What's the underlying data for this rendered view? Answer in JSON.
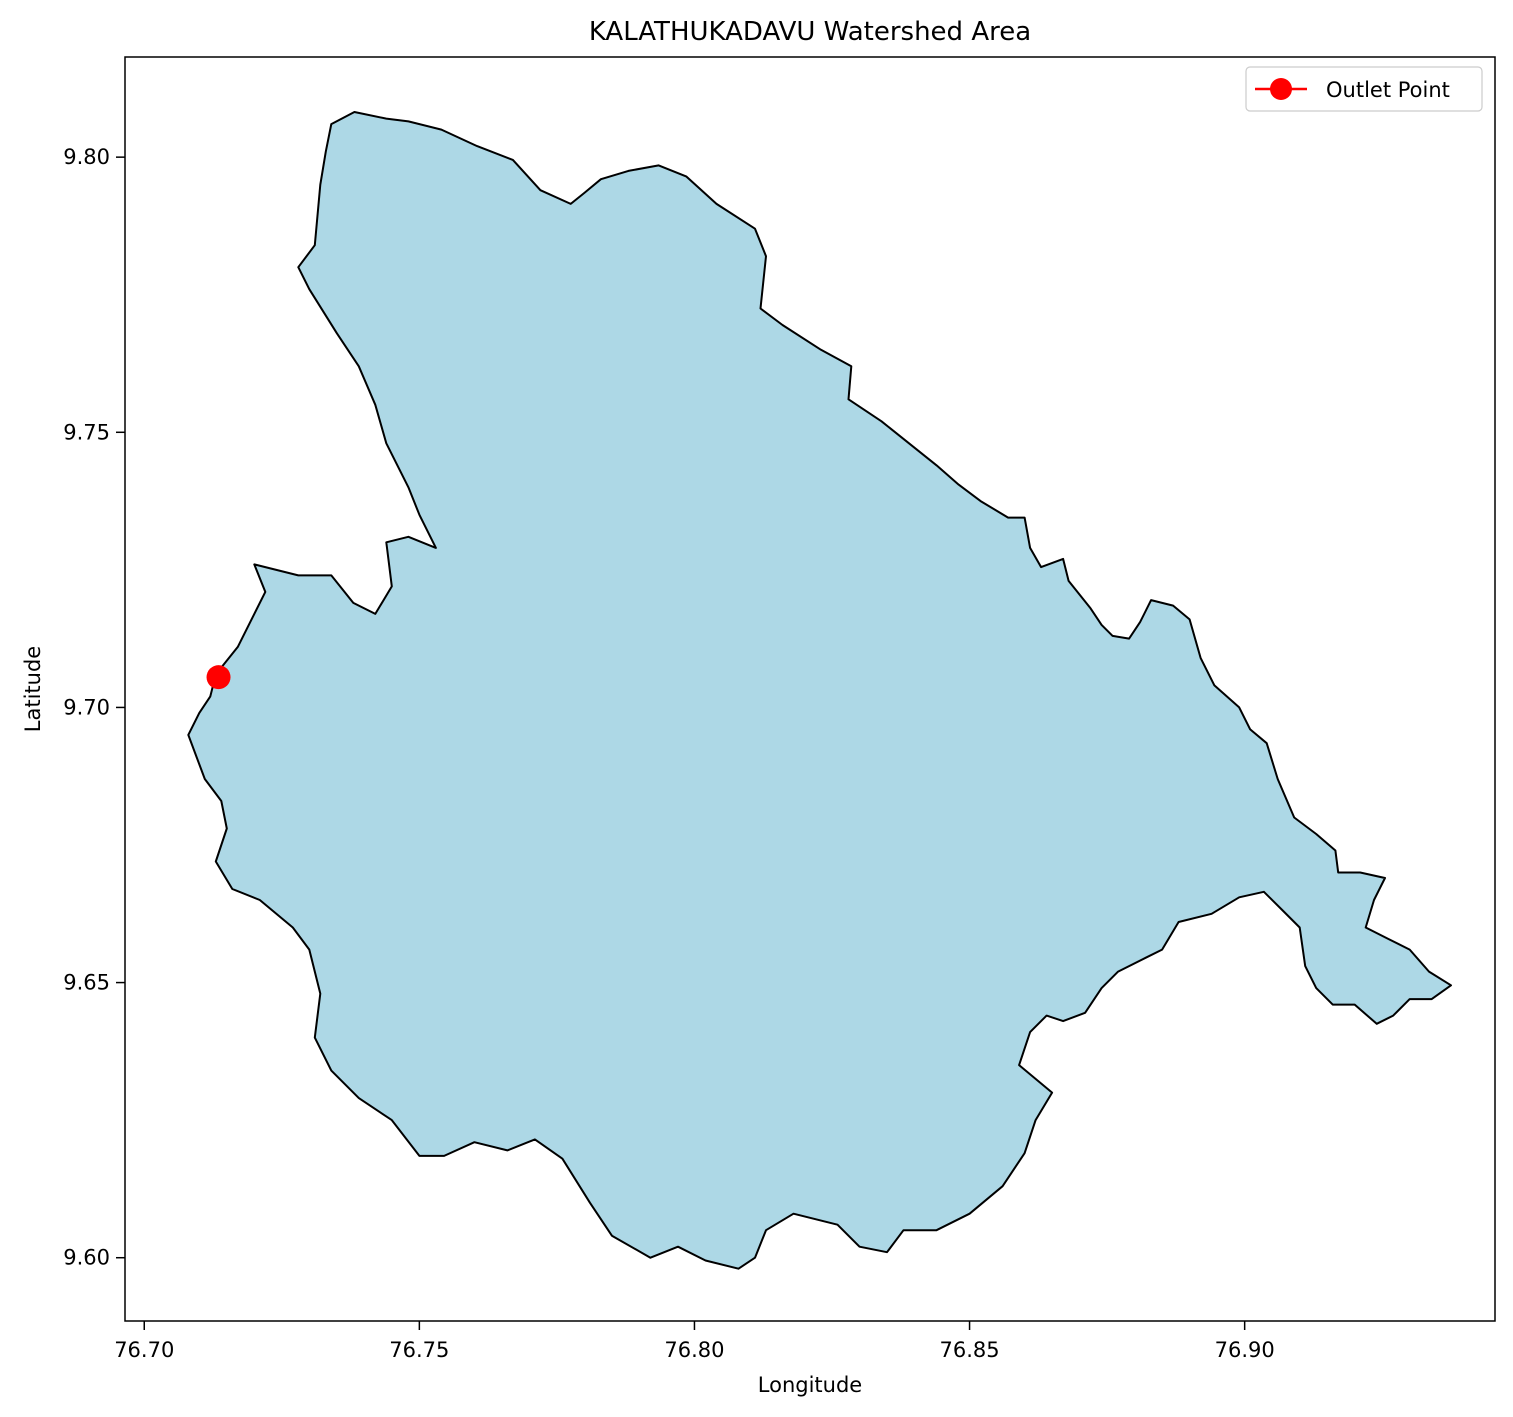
{
  "chart_data": {
    "type": "map",
    "title": "KALATHUKADAVU Watershed Area",
    "xlabel": "Longitude",
    "ylabel": "Latitude",
    "xlim": [
      76.6965,
      76.9455
    ],
    "ylim": [
      9.5885,
      9.8182
    ],
    "xticks": [
      {
        "value": 76.7,
        "label": "76.70"
      },
      {
        "value": 76.75,
        "label": "76.75"
      },
      {
        "value": 76.8,
        "label": "76.80"
      },
      {
        "value": 76.85,
        "label": "76.85"
      },
      {
        "value": 76.9,
        "label": "76.90"
      }
    ],
    "yticks": [
      {
        "value": 9.6,
        "label": "9.60"
      },
      {
        "value": 9.65,
        "label": "9.65"
      },
      {
        "value": 9.7,
        "label": "9.70"
      },
      {
        "value": 9.75,
        "label": "9.75"
      },
      {
        "value": 9.8,
        "label": "9.80"
      }
    ],
    "grid": false,
    "legend": {
      "placement": "upper-right",
      "entries": [
        {
          "label": "Outlet Point",
          "color": "#ff0000",
          "marker": "circle"
        }
      ]
    },
    "watershed": {
      "fill": "#add8e6",
      "edge": "#000000",
      "boundary": [
        [
          76.7382,
          9.8082
        ],
        [
          76.744,
          9.807
        ],
        [
          76.748,
          9.8065
        ],
        [
          76.754,
          9.805
        ],
        [
          76.7605,
          9.802
        ],
        [
          76.767,
          9.7995
        ],
        [
          76.772,
          9.794
        ],
        [
          76.7775,
          9.7915
        ],
        [
          76.78,
          9.7935
        ],
        [
          76.783,
          9.796
        ],
        [
          76.788,
          9.7975
        ],
        [
          76.7935,
          9.7985
        ],
        [
          76.7985,
          9.7965
        ],
        [
          76.804,
          9.7915
        ],
        [
          76.811,
          9.787
        ],
        [
          76.813,
          9.782
        ],
        [
          76.812,
          9.7725
        ],
        [
          76.816,
          9.7695
        ],
        [
          76.823,
          9.765
        ],
        [
          76.8285,
          9.762
        ],
        [
          76.828,
          9.756
        ],
        [
          76.834,
          9.752
        ],
        [
          76.839,
          9.748
        ],
        [
          76.844,
          9.744
        ],
        [
          76.848,
          9.7405
        ],
        [
          76.852,
          9.7375
        ],
        [
          76.857,
          9.7345
        ],
        [
          76.86,
          9.7345
        ],
        [
          76.861,
          9.729
        ],
        [
          76.863,
          9.7255
        ],
        [
          76.867,
          9.727
        ],
        [
          76.868,
          9.723
        ],
        [
          76.872,
          9.718
        ],
        [
          76.874,
          9.715
        ],
        [
          76.876,
          9.713
        ],
        [
          76.879,
          9.7125
        ],
        [
          76.881,
          9.7155
        ],
        [
          76.883,
          9.7195
        ],
        [
          76.887,
          9.7185
        ],
        [
          76.89,
          9.716
        ],
        [
          76.892,
          9.709
        ],
        [
          76.8945,
          9.704
        ],
        [
          76.899,
          9.7
        ],
        [
          76.901,
          9.696
        ],
        [
          76.904,
          9.6935
        ],
        [
          76.906,
          9.687
        ],
        [
          76.909,
          9.68
        ],
        [
          76.913,
          9.677
        ],
        [
          76.9165,
          9.674
        ],
        [
          76.917,
          9.67
        ],
        [
          76.921,
          9.67
        ],
        [
          76.9255,
          9.669
        ],
        [
          76.9235,
          9.665
        ],
        [
          76.922,
          9.66
        ],
        [
          76.926,
          9.658
        ],
        [
          76.93,
          9.656
        ],
        [
          76.9335,
          9.652
        ],
        [
          76.9375,
          9.6495
        ],
        [
          76.934,
          9.647
        ],
        [
          76.93,
          9.647
        ],
        [
          76.927,
          9.644
        ],
        [
          76.924,
          9.6425
        ],
        [
          76.92,
          9.646
        ],
        [
          76.916,
          9.646
        ],
        [
          76.913,
          9.649
        ],
        [
          76.911,
          9.653
        ],
        [
          76.91,
          9.66
        ],
        [
          76.907,
          9.663
        ],
        [
          76.9035,
          9.6665
        ],
        [
          76.899,
          9.6655
        ],
        [
          76.894,
          9.6625
        ],
        [
          76.888,
          9.661
        ],
        [
          76.885,
          9.656
        ],
        [
          76.882,
          9.6545
        ],
        [
          76.877,
          9.652
        ],
        [
          76.874,
          9.649
        ],
        [
          76.871,
          9.6445
        ],
        [
          76.867,
          9.643
        ],
        [
          76.864,
          9.644
        ],
        [
          76.861,
          9.641
        ],
        [
          76.859,
          9.635
        ],
        [
          76.865,
          9.63
        ],
        [
          76.862,
          9.625
        ],
        [
          76.86,
          9.619
        ],
        [
          76.856,
          9.613
        ],
        [
          76.85,
          9.608
        ],
        [
          76.844,
          9.605
        ],
        [
          76.838,
          9.605
        ],
        [
          76.835,
          9.601
        ],
        [
          76.83,
          9.602
        ],
        [
          76.826,
          9.606
        ],
        [
          76.822,
          9.607
        ],
        [
          76.818,
          9.608
        ],
        [
          76.813,
          9.605
        ],
        [
          76.811,
          9.6
        ],
        [
          76.808,
          9.598
        ],
        [
          76.802,
          9.5995
        ],
        [
          76.797,
          9.602
        ],
        [
          76.792,
          9.6
        ],
        [
          76.785,
          9.604
        ],
        [
          76.781,
          9.61
        ],
        [
          76.776,
          9.618
        ],
        [
          76.771,
          9.6215
        ],
        [
          76.766,
          9.6195
        ],
        [
          76.76,
          9.621
        ],
        [
          76.7545,
          9.6185
        ],
        [
          76.75,
          9.6185
        ],
        [
          76.745,
          9.625
        ],
        [
          76.739,
          9.629
        ],
        [
          76.734,
          9.634
        ],
        [
          76.731,
          9.64
        ],
        [
          76.732,
          9.648
        ],
        [
          76.73,
          9.656
        ],
        [
          76.727,
          9.66
        ],
        [
          76.721,
          9.665
        ],
        [
          76.716,
          9.667
        ],
        [
          76.713,
          9.672
        ],
        [
          76.715,
          9.678
        ],
        [
          76.714,
          9.683
        ],
        [
          76.711,
          9.687
        ],
        [
          76.708,
          9.695
        ],
        [
          76.71,
          9.699
        ],
        [
          76.712,
          9.702
        ],
        [
          76.713,
          9.706
        ],
        [
          76.717,
          9.711
        ],
        [
          76.72,
          9.717
        ],
        [
          76.722,
          9.721
        ],
        [
          76.72,
          9.726
        ],
        [
          76.728,
          9.724
        ],
        [
          76.734,
          9.724
        ],
        [
          76.738,
          9.719
        ],
        [
          76.742,
          9.717
        ],
        [
          76.745,
          9.722
        ],
        [
          76.744,
          9.73
        ],
        [
          76.748,
          9.731
        ],
        [
          76.753,
          9.729
        ],
        [
          76.75,
          9.735
        ],
        [
          76.748,
          9.74
        ],
        [
          76.744,
          9.748
        ],
        [
          76.742,
          9.755
        ],
        [
          76.739,
          9.762
        ],
        [
          76.735,
          9.768
        ],
        [
          76.73,
          9.776
        ],
        [
          76.728,
          9.78
        ],
        [
          76.731,
          9.784
        ],
        [
          76.732,
          9.795
        ],
        [
          76.733,
          9.801
        ],
        [
          76.734,
          9.806
        ]
      ]
    },
    "outlet_point": {
      "lon": 76.7135,
      "lat": 9.7055,
      "color": "#ff0000",
      "label": "Outlet Point"
    }
  }
}
